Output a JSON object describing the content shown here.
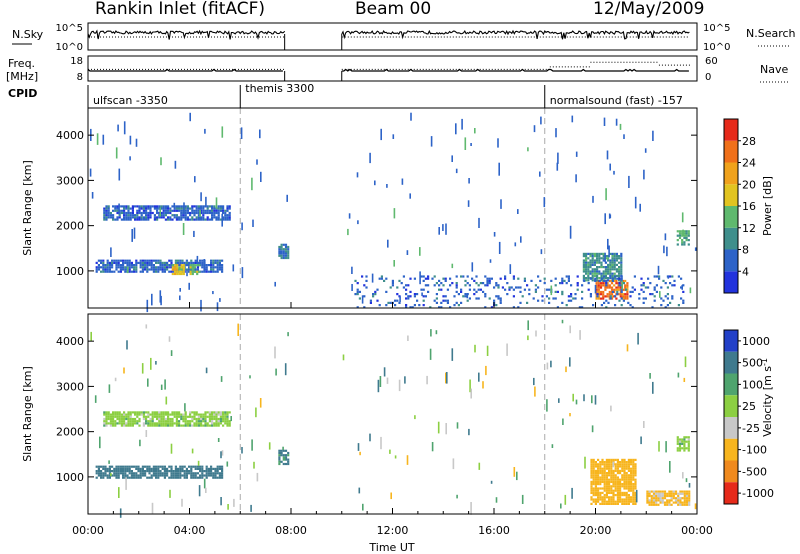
{
  "header": {
    "station": "Rankin Inlet (fitACF)",
    "beam": "Beam 00",
    "date": "12/May/2009"
  },
  "chart_data": [
    {
      "type": "line",
      "panel": "noise",
      "left_label": "N.Sky",
      "right_label": "N.Search",
      "left_ticks": [
        "10^5",
        "10^0"
      ],
      "right_ticks": [
        "10^5",
        "10^0"
      ],
      "series": [
        {
          "style": "solid",
          "segments": [
            [
              0.0,
              7.75
            ],
            [
              10.0,
              23.75
            ]
          ]
        },
        {
          "style": "dotted",
          "segments": [
            [
              0.0,
              7.75
            ],
            [
              10.0,
              23.75
            ]
          ]
        }
      ]
    },
    {
      "type": "line",
      "panel": "frequency",
      "left_label": "Freq.",
      "left_unit": "[MHz]",
      "right_label": "Nave",
      "left_ticks": [
        "18",
        "8"
      ],
      "right_ticks": [
        "60",
        "0"
      ],
      "frequency": {
        "segments": [
          [
            0.0,
            7.75,
            12.0
          ],
          [
            10.0,
            23.75,
            12.0
          ]
        ]
      },
      "nave": {
        "segments": [
          [
            0.0,
            7.75,
            28
          ],
          [
            10.0,
            18.2,
            28
          ],
          [
            18.2,
            19.8,
            34
          ],
          [
            19.8,
            22.5,
            45
          ],
          [
            22.5,
            23.75,
            38
          ]
        ]
      }
    },
    {
      "type": "table",
      "panel": "cpid",
      "label": "CPID",
      "modes": [
        {
          "name": "ulfscan",
          "id": "-3350",
          "start": 0.0
        },
        {
          "name": "themis",
          "id": "3300",
          "start": 6.0
        },
        {
          "name": "normalsound (fast)",
          "id": "-157",
          "start": 18.0
        }
      ]
    },
    {
      "type": "heatmap",
      "panel": "power",
      "ylabel": "Slant Range [km]",
      "ylim": [
        180,
        4600
      ],
      "yticks": [
        1000,
        2000,
        3000,
        4000
      ],
      "colorbar": {
        "label": "Power [dB]",
        "ticks": [
          4,
          8,
          12,
          16,
          20,
          24,
          28
        ],
        "range": [
          0,
          32
        ]
      },
      "echo_regions": [
        {
          "t0": 0.6,
          "t1": 5.6,
          "r0": 2150,
          "r1": 2450,
          "value": 6
        },
        {
          "t0": 0.3,
          "t1": 5.3,
          "r0": 1000,
          "r1": 1250,
          "value": 6
        },
        {
          "t0": 3.3,
          "t1": 3.8,
          "r0": 950,
          "r1": 1150,
          "value": 18
        },
        {
          "t0": 4.0,
          "t1": 4.4,
          "r0": 950,
          "r1": 1150,
          "value": 14
        },
        {
          "t0": 7.5,
          "t1": 7.9,
          "r0": 1300,
          "r1": 1600,
          "value": 8
        },
        {
          "t0": 20.0,
          "t1": 21.3,
          "r0": 400,
          "r1": 800,
          "value": 26
        },
        {
          "t0": 19.5,
          "t1": 21.0,
          "r0": 800,
          "r1": 1400,
          "value": 10
        },
        {
          "t0": 23.2,
          "t1": 23.7,
          "r0": 1600,
          "r1": 1900,
          "value": 12
        },
        {
          "t0": 10.5,
          "t1": 23.5,
          "r0": 200,
          "r1": 900,
          "value": 6
        }
      ]
    },
    {
      "type": "heatmap",
      "panel": "velocity",
      "ylabel": "Slant Range [km]",
      "xlabel": "Time UT",
      "xlim": [
        0,
        24
      ],
      "xticks": [
        "00:00",
        "04:00",
        "08:00",
        "12:00",
        "16:00",
        "20:00",
        "00:00"
      ],
      "ylim": [
        180,
        4600
      ],
      "yticks": [
        1000,
        2000,
        3000,
        4000
      ],
      "colorbar": {
        "label": "Velocity [m s",
        "unit_superscript": "-1",
        "ticks": [
          "1000",
          "500",
          "100",
          "25",
          "-25",
          "-100",
          "-500",
          "-1000"
        ]
      },
      "echo_regions": [
        {
          "t0": 0.6,
          "t1": 5.6,
          "r0": 2150,
          "r1": 2450,
          "value": 0
        },
        {
          "t0": 0.3,
          "t1": 5.3,
          "r0": 1000,
          "r1": 1250,
          "value": 150
        },
        {
          "t0": 7.5,
          "t1": 7.9,
          "r0": 1300,
          "r1": 1600,
          "value": 120
        },
        {
          "t0": 19.8,
          "t1": 21.6,
          "r0": 400,
          "r1": 1400,
          "value": -300
        },
        {
          "t0": 22.0,
          "t1": 23.7,
          "r0": 400,
          "r1": 700,
          "value": -120
        },
        {
          "t0": 23.2,
          "t1": 23.7,
          "r0": 1600,
          "r1": 1900,
          "value": 0
        }
      ]
    }
  ]
}
